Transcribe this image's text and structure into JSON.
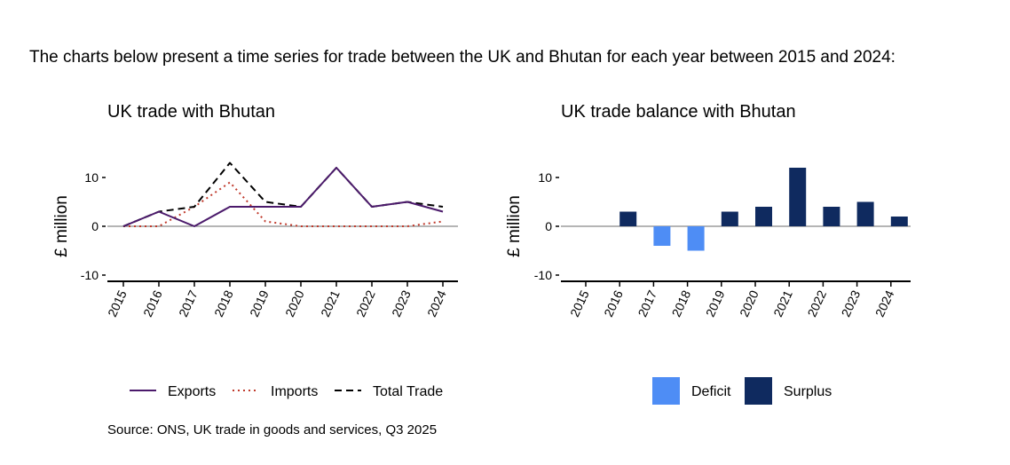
{
  "intro": "The charts below present a time series for trade between the UK and Bhutan for each year between 2015 and 2024:",
  "source": "Source: ONS, UK trade in goods and services, Q3 2025",
  "colors": {
    "exports": "#4b1a6b",
    "imports": "#c0392b",
    "total": "#000000",
    "deficit": "#4e8df5",
    "surplus": "#0f2a5f"
  },
  "chart_data": [
    {
      "type": "line",
      "title": "UK trade with Bhutan",
      "xlabel": "",
      "ylabel": "£ million",
      "ylim": [
        -10,
        10
      ],
      "yticks": [
        "10",
        "0",
        "-10"
      ],
      "x": [
        "2015",
        "2016",
        "2017",
        "2018",
        "2019",
        "2020",
        "2021",
        "2022",
        "2023",
        "2024"
      ],
      "series": [
        {
          "name": "Exports",
          "style": "solid",
          "values": [
            0,
            3,
            0,
            4,
            4,
            4,
            12,
            4,
            5,
            3
          ]
        },
        {
          "name": "Imports",
          "style": "dotted",
          "values": [
            0,
            0,
            4,
            9,
            1,
            0,
            0,
            0,
            0,
            1
          ]
        },
        {
          "name": "Total Trade",
          "style": "dashed",
          "values": [
            0,
            3,
            4,
            13,
            5,
            4,
            12,
            4,
            5,
            4
          ]
        }
      ],
      "legend": [
        "Exports",
        "Imports",
        "Total Trade"
      ]
    },
    {
      "type": "bar",
      "title": "UK trade balance with Bhutan",
      "xlabel": "",
      "ylabel": "£ million",
      "ylim": [
        -10,
        10
      ],
      "yticks": [
        "10",
        "0",
        "-10"
      ],
      "categories": [
        "2015",
        "2016",
        "2017",
        "2018",
        "2019",
        "2020",
        "2021",
        "2022",
        "2023",
        "2024"
      ],
      "values": [
        0,
        3,
        -4,
        -5,
        3,
        4,
        12,
        4,
        5,
        2
      ],
      "legend": [
        "Deficit",
        "Surplus"
      ]
    }
  ]
}
